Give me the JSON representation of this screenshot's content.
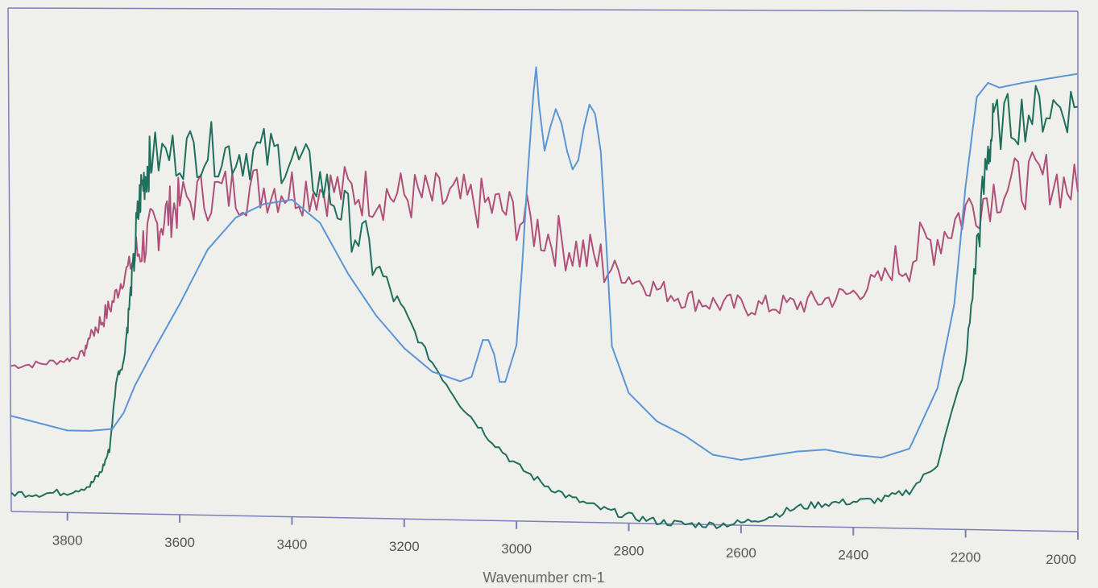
{
  "chart_data": {
    "type": "line",
    "title": "",
    "xlabel": "Wavenumber cm-1",
    "ylabel": "",
    "xlim": [
      3900,
      2000
    ],
    "ylim": [
      0,
      100
    ],
    "x_reversed": true,
    "grid": false,
    "legend": "none",
    "xticks": [
      3800,
      3600,
      3400,
      3200,
      3000,
      2800,
      2600,
      2400,
      2200,
      2000
    ],
    "series": [
      {
        "color": "#b0507a",
        "noisy": true,
        "x": [
          3900,
          3850,
          3800,
          3770,
          3760,
          3740,
          3720,
          3700,
          3680,
          3660,
          3640,
          3620,
          3600,
          3550,
          3500,
          3450,
          3400,
          3350,
          3300,
          3250,
          3200,
          3150,
          3100,
          3050,
          3000,
          2950,
          2900,
          2850,
          2800,
          2750,
          2700,
          2650,
          2600,
          2550,
          2500,
          2450,
          2400,
          2350,
          2300,
          2250,
          2200,
          2150,
          2100,
          2050,
          2000
        ],
        "y": [
          32,
          32.5,
          33.5,
          35,
          39,
          42,
          46,
          52,
          56,
          60,
          63,
          66,
          68,
          70,
          71,
          71.5,
          71.5,
          71.5,
          71,
          70.5,
          70,
          69.5,
          69,
          68,
          66,
          62,
          59,
          56,
          53,
          50.5,
          48.5,
          47.5,
          47,
          47,
          47.5,
          48.5,
          50,
          53,
          58,
          62,
          68,
          72,
          74,
          75,
          72
        ]
      },
      {
        "color": "#1f6f5c",
        "noisy": true,
        "x": [
          3900,
          3850,
          3800,
          3760,
          3740,
          3725,
          3712,
          3700,
          3690,
          3680,
          3670,
          3660,
          3650,
          3600,
          3550,
          3500,
          3450,
          3400,
          3350,
          3300,
          3250,
          3200,
          3150,
          3100,
          3050,
          3000,
          2950,
          2900,
          2850,
          2800,
          2750,
          2700,
          2650,
          2600,
          2550,
          2500,
          2450,
          2400,
          2350,
          2300,
          2250,
          2200,
          2180,
          2160,
          2150,
          2100,
          2050,
          2000
        ],
        "y": [
          4,
          4,
          4.5,
          6,
          9,
          14,
          30,
          33,
          45,
          58,
          70,
          75,
          78,
          79,
          80,
          79,
          79,
          78,
          73,
          65,
          55,
          44,
          34,
          25,
          18,
          12,
          8,
          5,
          3,
          1.5,
          0.5,
          0,
          0,
          0.5,
          2,
          4,
          5,
          5.5,
          6,
          8,
          14,
          35,
          60,
          80,
          86,
          88,
          90,
          90
        ]
      },
      {
        "color": "#5a95d6",
        "noisy": false,
        "x": [
          3900,
          3850,
          3800,
          3760,
          3720,
          3700,
          3680,
          3650,
          3600,
          3550,
          3500,
          3450,
          3400,
          3350,
          3300,
          3250,
          3200,
          3150,
          3100,
          3080,
          3060,
          3050,
          3040,
          3030,
          3020,
          3000,
          2990,
          2980,
          2970,
          2965,
          2960,
          2950,
          2940,
          2930,
          2920,
          2910,
          2900,
          2890,
          2880,
          2870,
          2860,
          2850,
          2840,
          2830,
          2800,
          2750,
          2700,
          2650,
          2600,
          2550,
          2500,
          2450,
          2400,
          2350,
          2300,
          2250,
          2220,
          2200,
          2180,
          2160,
          2140,
          2100,
          2050,
          2000
        ],
        "y": [
          21,
          19.5,
          18,
          18,
          18.5,
          22,
          28,
          35,
          46,
          58,
          65,
          68,
          69,
          64,
          53,
          44,
          37,
          32,
          30,
          31,
          39,
          39,
          36,
          30,
          30,
          38,
          55,
          75,
          92,
          98,
          90,
          80,
          85,
          89,
          86,
          80,
          76,
          78,
          85,
          90,
          88,
          80,
          60,
          38,
          28,
          22,
          19,
          15,
          14,
          15,
          16,
          16.5,
          15.5,
          15,
          17,
          30,
          48,
          73,
          92,
          95,
          94,
          95,
          96,
          97
        ]
      }
    ]
  }
}
